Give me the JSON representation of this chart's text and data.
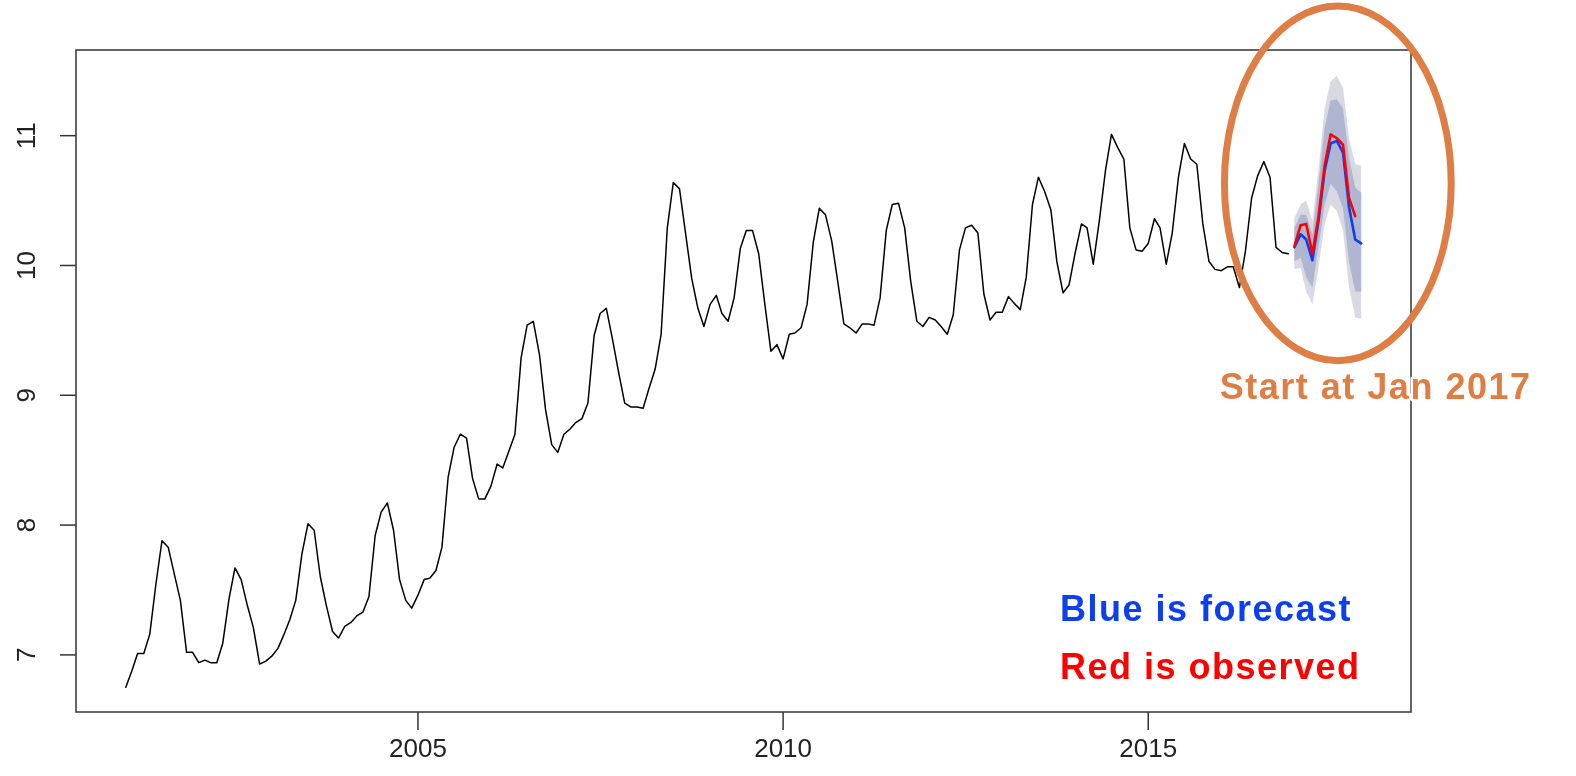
{
  "chart_data": {
    "type": "line",
    "xlim": [
      "2000-04-27",
      "2018-08-07"
    ],
    "xticks": [
      "2005",
      "2010",
      "2015"
    ],
    "ylim": [
      6.56,
      11.66
    ],
    "yticks": [
      7,
      8,
      9,
      10,
      11
    ],
    "legend": "bottom right",
    "annotations": [
      "Start at Jan 2017"
    ],
    "x": [
      "2001-01",
      "2001-02",
      "2001-03",
      "2001-04",
      "2001-05",
      "2001-06",
      "2001-07",
      "2001-08",
      "2001-09",
      "2001-10",
      "2001-11",
      "2001-12",
      "2002-01",
      "2002-02",
      "2002-03",
      "2002-04",
      "2002-05",
      "2002-06",
      "2002-07",
      "2002-08",
      "2002-09",
      "2002-10",
      "2002-11",
      "2002-12",
      "2003-01",
      "2003-02",
      "2003-03",
      "2003-04",
      "2003-05",
      "2003-06",
      "2003-07",
      "2003-08",
      "2003-09",
      "2003-10",
      "2003-11",
      "2003-12",
      "2004-01",
      "2004-02",
      "2004-03",
      "2004-04",
      "2004-05",
      "2004-06",
      "2004-07",
      "2004-08",
      "2004-09",
      "2004-10",
      "2004-11",
      "2004-12",
      "2005-01",
      "2005-02",
      "2005-03",
      "2005-04",
      "2005-05",
      "2005-06",
      "2005-07",
      "2005-08",
      "2005-09",
      "2005-10",
      "2005-11",
      "2005-12",
      "2006-01",
      "2006-02",
      "2006-03",
      "2006-04",
      "2006-05",
      "2006-06",
      "2006-07",
      "2006-08",
      "2006-09",
      "2006-10",
      "2006-11",
      "2006-12",
      "2007-01",
      "2007-02",
      "2007-03",
      "2007-04",
      "2007-05",
      "2007-06",
      "2007-07",
      "2007-08",
      "2007-09",
      "2007-10",
      "2007-11",
      "2007-12",
      "2008-01",
      "2008-02",
      "2008-03",
      "2008-04",
      "2008-05",
      "2008-06",
      "2008-07",
      "2008-08",
      "2008-09",
      "2008-10",
      "2008-11",
      "2008-12",
      "2009-01",
      "2009-02",
      "2009-03",
      "2009-04",
      "2009-05",
      "2009-06",
      "2009-07",
      "2009-08",
      "2009-09",
      "2009-10",
      "2009-11",
      "2009-12",
      "2010-01",
      "2010-02",
      "2010-03",
      "2010-04",
      "2010-05",
      "2010-06",
      "2010-07",
      "2010-08",
      "2010-09",
      "2010-10",
      "2010-11",
      "2010-12",
      "2011-01",
      "2011-02",
      "2011-03",
      "2011-04",
      "2011-05",
      "2011-06",
      "2011-07",
      "2011-08",
      "2011-09",
      "2011-10",
      "2011-11",
      "2011-12",
      "2012-01",
      "2012-02",
      "2012-03",
      "2012-04",
      "2012-05",
      "2012-06",
      "2012-07",
      "2012-08",
      "2012-09",
      "2012-10",
      "2012-11",
      "2012-12",
      "2013-01",
      "2013-02",
      "2013-03",
      "2013-04",
      "2013-05",
      "2013-06",
      "2013-07",
      "2013-08",
      "2013-09",
      "2013-10",
      "2013-11",
      "2013-12",
      "2014-01",
      "2014-02",
      "2014-03",
      "2014-04",
      "2014-05",
      "2014-06",
      "2014-07",
      "2014-08",
      "2014-09",
      "2014-10",
      "2014-11",
      "2014-12",
      "2015-01",
      "2015-02",
      "2015-03",
      "2015-04",
      "2015-05",
      "2015-06",
      "2015-07",
      "2015-08",
      "2015-09",
      "2015-10",
      "2015-11",
      "2015-12",
      "2016-01",
      "2016-02",
      "2016-03",
      "2016-04",
      "2016-05",
      "2016-06",
      "2016-07",
      "2016-08",
      "2016-09",
      "2016-10",
      "2016-11",
      "2016-12"
    ],
    "series": [
      {
        "color": "#000000",
        "values": [
          6.75,
          6.88,
          7.01,
          7.01,
          7.16,
          7.55,
          7.88,
          7.83,
          7.62,
          7.42,
          7.02,
          7.02,
          6.94,
          6.96,
          6.94,
          6.94,
          7.09,
          7.43,
          7.67,
          7.58,
          7.38,
          7.21,
          6.93,
          6.95,
          6.99,
          7.05,
          7.15,
          7.27,
          7.42,
          7.78,
          8.01,
          7.96,
          7.6,
          7.38,
          7.18,
          7.13,
          7.22,
          7.25,
          7.3,
          7.33,
          7.45,
          7.92,
          8.1,
          8.17,
          7.96,
          7.58,
          7.42,
          7.36,
          7.46,
          7.58,
          7.59,
          7.65,
          7.83,
          8.37,
          8.6,
          8.7,
          8.67,
          8.36,
          8.2,
          8.2,
          8.3,
          8.47,
          8.44,
          8.57,
          8.7,
          9.29,
          9.54,
          9.57,
          9.31,
          8.89,
          8.62,
          8.56,
          8.7,
          8.74,
          8.79,
          8.82,
          8.94,
          9.46,
          9.63,
          9.67,
          9.43,
          9.18,
          8.94,
          8.91,
          8.91,
          8.9,
          9.05,
          9.2,
          9.47,
          10.29,
          10.64,
          10.59,
          10.24,
          9.9,
          9.67,
          9.53,
          9.7,
          9.77,
          9.63,
          9.57,
          9.75,
          10.13,
          10.27,
          10.27,
          10.09,
          9.71,
          9.34,
          9.39,
          9.28,
          9.47,
          9.48,
          9.52,
          9.7,
          10.18,
          10.44,
          10.39,
          10.19,
          9.88,
          9.55,
          9.52,
          9.48,
          9.55,
          9.55,
          9.54,
          9.75,
          10.27,
          10.47,
          10.48,
          10.29,
          9.88,
          9.57,
          9.53,
          9.6,
          9.58,
          9.53,
          9.47,
          9.62,
          10.12,
          10.29,
          10.31,
          10.25,
          9.78,
          9.58,
          9.64,
          9.64,
          9.76,
          9.71,
          9.66,
          9.91,
          10.47,
          10.68,
          10.57,
          10.43,
          10.03,
          9.79,
          9.85,
          10.1,
          10.32,
          10.29,
          10.01,
          10.34,
          10.73,
          11.01,
          10.91,
          10.82,
          10.29,
          10.12,
          10.11,
          10.17,
          10.36,
          10.29,
          10.01,
          10.25,
          10.68,
          10.94,
          10.82,
          10.78,
          10.32,
          10.03,
          9.97,
          9.96,
          9.99,
          9.99,
          9.83,
          10.11,
          10.52,
          10.69,
          10.8,
          10.68,
          10.14,
          10.1,
          10.09
        ]
      },
      {
        "color": "#d9d9e2",
        "x": [
          "2017-01",
          "2017-02",
          "2017-03",
          "2017-04",
          "2017-05",
          "2017-06",
          "2017-07",
          "2017-08",
          "2017-09",
          "2017-10",
          "2017-11",
          "2017-12"
        ],
        "values": [
          null,
          null,
          null,
          null,
          null,
          null,
          null,
          null,
          null,
          null,
          null,
          null
        ],
        "lower": [
          9.97,
          9.98,
          9.8,
          9.7,
          9.98,
          10.32,
          10.47,
          10.42,
          10.27,
          9.83,
          9.6,
          9.59
        ],
        "upper": [
          10.37,
          10.47,
          10.5,
          10.34,
          10.73,
          11.21,
          11.42,
          11.46,
          11.37,
          10.98,
          10.78,
          10.77
        ]
      },
      {
        "color": "#b0b5d2",
        "x": [
          "2017-01",
          "2017-02",
          "2017-03",
          "2017-04",
          "2017-05",
          "2017-06",
          "2017-07",
          "2017-08",
          "2017-09",
          "2017-10",
          "2017-11",
          "2017-12"
        ],
        "values": [
          null,
          null,
          null,
          null,
          null,
          null,
          null,
          null,
          null,
          null,
          null,
          null
        ],
        "lower": [
          10.03,
          10.06,
          9.91,
          9.83,
          10.14,
          10.47,
          10.63,
          10.57,
          10.44,
          10.03,
          9.8,
          9.8
        ],
        "upper": [
          10.29,
          10.39,
          10.39,
          10.24,
          10.63,
          11.06,
          11.27,
          11.28,
          11.21,
          10.83,
          10.6,
          10.56
        ]
      },
      {
        "name": "Blue is forecast",
        "color": "#0b3ff0",
        "x": [
          "2017-01",
          "2017-02",
          "2017-03",
          "2017-04",
          "2017-05",
          "2017-06",
          "2017-07",
          "2017-08",
          "2017-09",
          "2017-10",
          "2017-11",
          "2017-12"
        ],
        "values": [
          10.14,
          10.24,
          10.2,
          10.04,
          10.34,
          10.73,
          10.94,
          10.96,
          10.87,
          10.45,
          10.2,
          10.17
        ]
      },
      {
        "name": "Red is observed",
        "color": "#ff0000",
        "x": [
          "2017-01",
          "2017-02",
          "2017-03",
          "2017-04",
          "2017-05",
          "2017-06",
          "2017-07",
          "2017-08",
          "2017-09",
          "2017-10",
          "2017-11"
        ],
        "values": [
          10.15,
          10.31,
          10.32,
          10.09,
          10.37,
          10.77,
          11.01,
          10.98,
          10.93,
          10.52,
          10.38
        ]
      }
    ]
  }
}
